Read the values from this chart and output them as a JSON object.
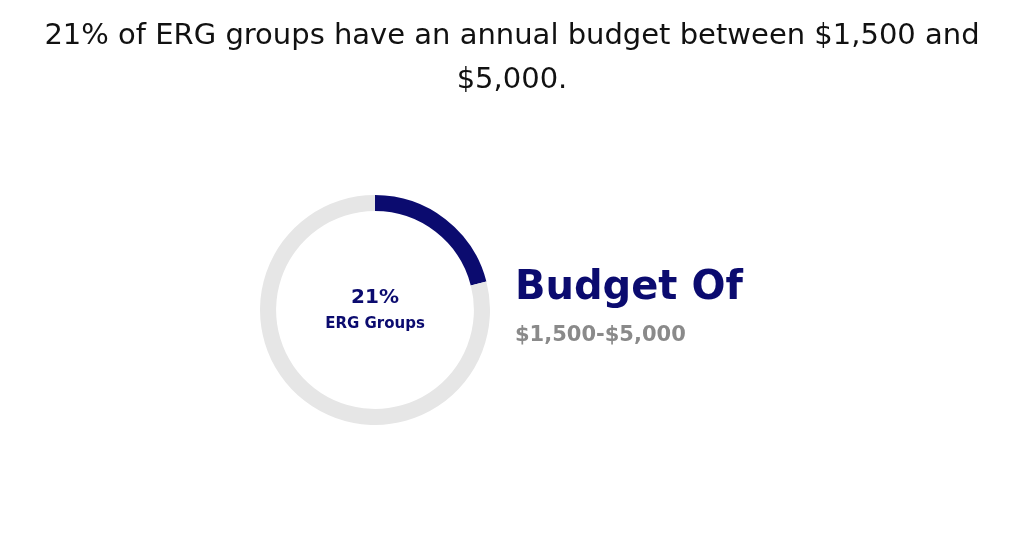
{
  "chart_data": {
    "type": "donut",
    "title": "21% of ERG groups have an annual budget between $1,500 and $5,000.",
    "categories": [
      "ERG Groups",
      null
    ],
    "values": [
      21,
      79
    ],
    "colors": [
      "#0b0b6f",
      "#e6e6e6"
    ],
    "value_labels": [
      "21%",
      null
    ],
    "annotations": [
      "Budget Of",
      "$1,500-$5,000"
    ],
    "legend": false
  }
}
